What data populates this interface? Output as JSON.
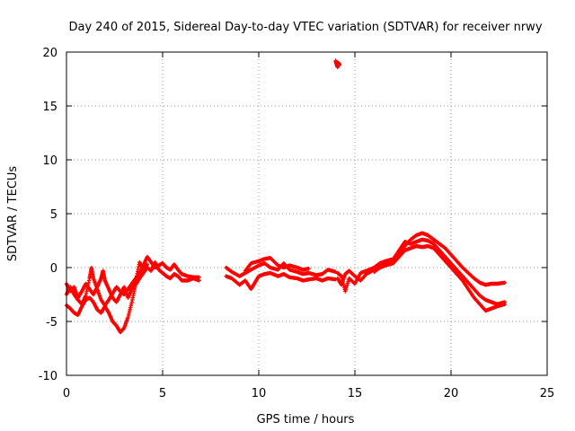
{
  "chart_data": {
    "type": "scatter",
    "title": "Day 240 of 2015, Sidereal Day-to-day VTEC variation (SDTVAR) for receiver nrwy",
    "xlabel": "GPS time / hours",
    "ylabel": "SDTVAR / TECUs",
    "xlim": [
      0,
      25
    ],
    "ylim": [
      -10,
      20
    ],
    "xticks": [
      "0",
      "5",
      "10",
      "15",
      "20",
      "25"
    ],
    "yticks": [
      "-10",
      "-5",
      "0",
      "5",
      "10",
      "15",
      "20"
    ],
    "grid": true,
    "marker": "plus",
    "color": "#ff0000",
    "series": [
      {
        "name": "nrwy",
        "tracks": [
          [
            [
              0,
              -2.5
            ],
            [
              0.2,
              -1.8
            ],
            [
              0.4,
              -2.5
            ],
            [
              0.6,
              -3.0
            ],
            [
              0.8,
              -3.4
            ],
            [
              1.0,
              -2.6
            ],
            [
              1.2,
              -1.0
            ],
            [
              1.3,
              0.0
            ],
            [
              1.4,
              -1.0
            ],
            [
              1.6,
              -2.0
            ],
            [
              1.8,
              -3.0
            ],
            [
              2.0,
              -3.5
            ],
            [
              2.2,
              -3.0
            ],
            [
              2.4,
              -2.4
            ],
            [
              2.6,
              -1.8
            ],
            [
              2.8,
              -2.2
            ],
            [
              3.0,
              -2.5
            ],
            [
              3.2,
              -2.0
            ],
            [
              3.4,
              -1.5
            ],
            [
              3.6,
              -1.0
            ],
            [
              3.8,
              -0.5
            ],
            [
              4.0,
              0.2
            ],
            [
              4.2,
              1.0
            ],
            [
              4.4,
              0.5
            ],
            [
              4.6,
              0.0
            ],
            [
              4.8,
              0.2
            ],
            [
              5.0,
              0.4
            ],
            [
              5.2,
              0.0
            ],
            [
              5.4,
              -0.2
            ],
            [
              5.6,
              0.3
            ],
            [
              5.8,
              -0.2
            ],
            [
              6.0,
              -0.6
            ],
            [
              6.3,
              -0.8
            ],
            [
              6.6,
              -0.9
            ],
            [
              6.9,
              -0.9
            ]
          ],
          [
            [
              0,
              -3.5
            ],
            [
              0.2,
              -3.8
            ],
            [
              0.4,
              -4.2
            ],
            [
              0.6,
              -4.4
            ],
            [
              0.8,
              -3.6
            ],
            [
              1.0,
              -3.0
            ],
            [
              1.2,
              -2.8
            ],
            [
              1.4,
              -3.2
            ],
            [
              1.6,
              -3.9
            ],
            [
              1.8,
              -4.2
            ],
            [
              2.0,
              -3.6
            ],
            [
              2.2,
              -4.2
            ],
            [
              2.4,
              -5.0
            ],
            [
              2.6,
              -5.4
            ],
            [
              2.8,
              -6.0
            ],
            [
              3.0,
              -5.6
            ],
            [
              3.2,
              -4.6
            ],
            [
              3.4,
              -3.2
            ],
            [
              3.6,
              -1.6
            ],
            [
              3.8,
              -1.0
            ],
            [
              4.0,
              -0.5
            ],
            [
              4.2,
              0.0
            ],
            [
              4.4,
              -0.3
            ],
            [
              4.6,
              0.5
            ],
            [
              4.8,
              -0.2
            ],
            [
              5.0,
              -0.5
            ],
            [
              5.2,
              -0.8
            ],
            [
              5.4,
              -1.0
            ],
            [
              5.6,
              -0.6
            ],
            [
              5.8,
              -0.8
            ],
            [
              6.0,
              -1.2
            ],
            [
              6.3,
              -1.2
            ],
            [
              6.6,
              -1.0
            ],
            [
              6.9,
              -1.2
            ]
          ],
          [
            [
              0,
              -1.5
            ],
            [
              0.2,
              -2.2
            ],
            [
              0.4,
              -1.8
            ],
            [
              0.6,
              -2.8
            ],
            [
              0.8,
              -2.2
            ],
            [
              1.0,
              -1.5
            ],
            [
              1.2,
              -2.0
            ],
            [
              1.4,
              -2.5
            ],
            [
              1.6,
              -1.8
            ],
            [
              1.8,
              -1.0
            ],
            [
              1.9,
              -0.3
            ],
            [
              2.0,
              -1.2
            ],
            [
              2.2,
              -2.0
            ],
            [
              2.4,
              -2.8
            ],
            [
              2.6,
              -3.2
            ],
            [
              2.8,
              -2.5
            ],
            [
              3.0,
              -1.8
            ],
            [
              3.2,
              -2.8
            ],
            [
              3.4,
              -2.0
            ],
            [
              3.6,
              -1.2
            ],
            [
              3.8,
              0.5
            ],
            [
              4.0,
              -0.2
            ],
            [
              4.2,
              0.3
            ]
          ],
          [
            [
              8.3,
              0.0
            ],
            [
              8.6,
              -0.4
            ],
            [
              9.0,
              -0.8
            ],
            [
              9.3,
              -0.5
            ],
            [
              9.6,
              -0.2
            ],
            [
              10.0,
              0.2
            ],
            [
              10.3,
              0.4
            ],
            [
              10.6,
              0.0
            ],
            [
              11.0,
              -0.2
            ],
            [
              11.3,
              0.4
            ],
            [
              11.6,
              -0.2
            ],
            [
              12.0,
              -0.4
            ],
            [
              12.3,
              -0.6
            ],
            [
              12.6,
              -0.5
            ],
            [
              13.0,
              -0.7
            ],
            [
              13.3,
              -0.6
            ],
            [
              13.6,
              -0.2
            ],
            [
              14.0,
              -0.4
            ]
          ],
          [
            [
              8.3,
              -0.8
            ],
            [
              8.6,
              -1.0
            ],
            [
              9.0,
              -1.6
            ],
            [
              9.3,
              -1.2
            ],
            [
              9.6,
              -2.0
            ],
            [
              9.8,
              -1.4
            ],
            [
              10.0,
              -0.8
            ],
            [
              10.3,
              -0.6
            ],
            [
              10.6,
              -0.5
            ],
            [
              11.0,
              -0.8
            ],
            [
              11.3,
              -0.6
            ],
            [
              11.6,
              -0.9
            ],
            [
              12.0,
              -1.0
            ],
            [
              12.3,
              -1.2
            ],
            [
              12.6,
              -1.1
            ],
            [
              13.0,
              -1.0
            ],
            [
              13.3,
              -1.2
            ],
            [
              13.6,
              -1.0
            ],
            [
              14.0,
              -1.1
            ]
          ],
          [
            [
              9.3,
              -0.3
            ],
            [
              9.6,
              0.4
            ],
            [
              10.0,
              0.6
            ],
            [
              10.3,
              0.8
            ],
            [
              10.6,
              0.9
            ],
            [
              11.0,
              0.2
            ],
            [
              11.3,
              0.0
            ],
            [
              11.6,
              0.2
            ],
            [
              12.0,
              0.0
            ],
            [
              12.3,
              -0.2
            ],
            [
              12.6,
              -0.1
            ]
          ],
          [
            [
              14.1,
              -1.0
            ],
            [
              14.3,
              -1.6
            ],
            [
              14.5,
              -0.6
            ],
            [
              14.7,
              -0.3
            ],
            [
              15.0,
              -0.8
            ],
            [
              15.3,
              -1.2
            ],
            [
              15.6,
              -0.6
            ],
            [
              16.0,
              -0.2
            ],
            [
              16.3,
              0.2
            ],
            [
              16.6,
              0.4
            ],
            [
              17.0,
              0.6
            ],
            [
              17.3,
              1.2
            ],
            [
              17.6,
              2.0
            ],
            [
              17.9,
              2.6
            ],
            [
              18.2,
              3.0
            ],
            [
              18.5,
              3.2
            ],
            [
              18.8,
              3.0
            ],
            [
              19.1,
              2.6
            ],
            [
              19.4,
              2.2
            ],
            [
              19.7,
              1.8
            ],
            [
              20.0,
              1.2
            ],
            [
              20.3,
              0.6
            ],
            [
              20.6,
              0.0
            ],
            [
              20.9,
              -0.5
            ],
            [
              21.2,
              -1.0
            ],
            [
              21.5,
              -1.4
            ],
            [
              21.8,
              -1.6
            ],
            [
              22.1,
              -1.5
            ],
            [
              22.4,
              -1.5
            ],
            [
              22.8,
              -1.4
            ]
          ],
          [
            [
              14.1,
              -0.5
            ],
            [
              14.3,
              -0.8
            ],
            [
              14.5,
              -2.2
            ],
            [
              14.7,
              -1.0
            ],
            [
              15.0,
              -1.5
            ],
            [
              15.3,
              -0.5
            ],
            [
              15.6,
              -0.3
            ],
            [
              16.0,
              0.0
            ],
            [
              16.3,
              0.4
            ],
            [
              16.6,
              0.6
            ],
            [
              17.0,
              0.8
            ],
            [
              17.3,
              1.6
            ],
            [
              17.6,
              2.4
            ],
            [
              17.9,
              2.2
            ],
            [
              18.2,
              2.4
            ],
            [
              18.5,
              2.6
            ],
            [
              18.8,
              2.5
            ],
            [
              19.1,
              2.2
            ],
            [
              19.4,
              1.6
            ],
            [
              19.7,
              1.0
            ],
            [
              20.0,
              0.4
            ],
            [
              20.3,
              -0.2
            ],
            [
              20.6,
              -0.8
            ],
            [
              20.9,
              -1.4
            ],
            [
              21.2,
              -2.0
            ],
            [
              21.5,
              -2.6
            ],
            [
              21.8,
              -3.0
            ],
            [
              22.1,
              -3.2
            ],
            [
              22.4,
              -3.4
            ],
            [
              22.8,
              -3.2
            ]
          ],
          [
            [
              16.0,
              -0.4
            ],
            [
              16.3,
              0.0
            ],
            [
              16.6,
              0.2
            ],
            [
              17.0,
              0.4
            ],
            [
              17.3,
              1.0
            ],
            [
              17.6,
              1.6
            ],
            [
              17.9,
              1.8
            ],
            [
              18.2,
              2.0
            ],
            [
              18.5,
              1.9
            ],
            [
              18.8,
              2.0
            ],
            [
              19.1,
              1.8
            ],
            [
              19.4,
              1.2
            ],
            [
              19.7,
              0.6
            ],
            [
              20.0,
              0.0
            ],
            [
              20.3,
              -0.6
            ],
            [
              20.6,
              -1.2
            ],
            [
              20.9,
              -2.0
            ],
            [
              21.2,
              -2.8
            ],
            [
              21.5,
              -3.4
            ],
            [
              21.8,
              -4.0
            ],
            [
              22.1,
              -3.8
            ],
            [
              22.4,
              -3.6
            ],
            [
              22.8,
              -3.4
            ]
          ],
          [
            [
              14.0,
              19.2
            ],
            [
              14.05,
              18.9
            ],
            [
              14.1,
              18.6
            ],
            [
              14.15,
              19.0
            ],
            [
              14.2,
              18.8
            ]
          ]
        ]
      }
    ]
  }
}
